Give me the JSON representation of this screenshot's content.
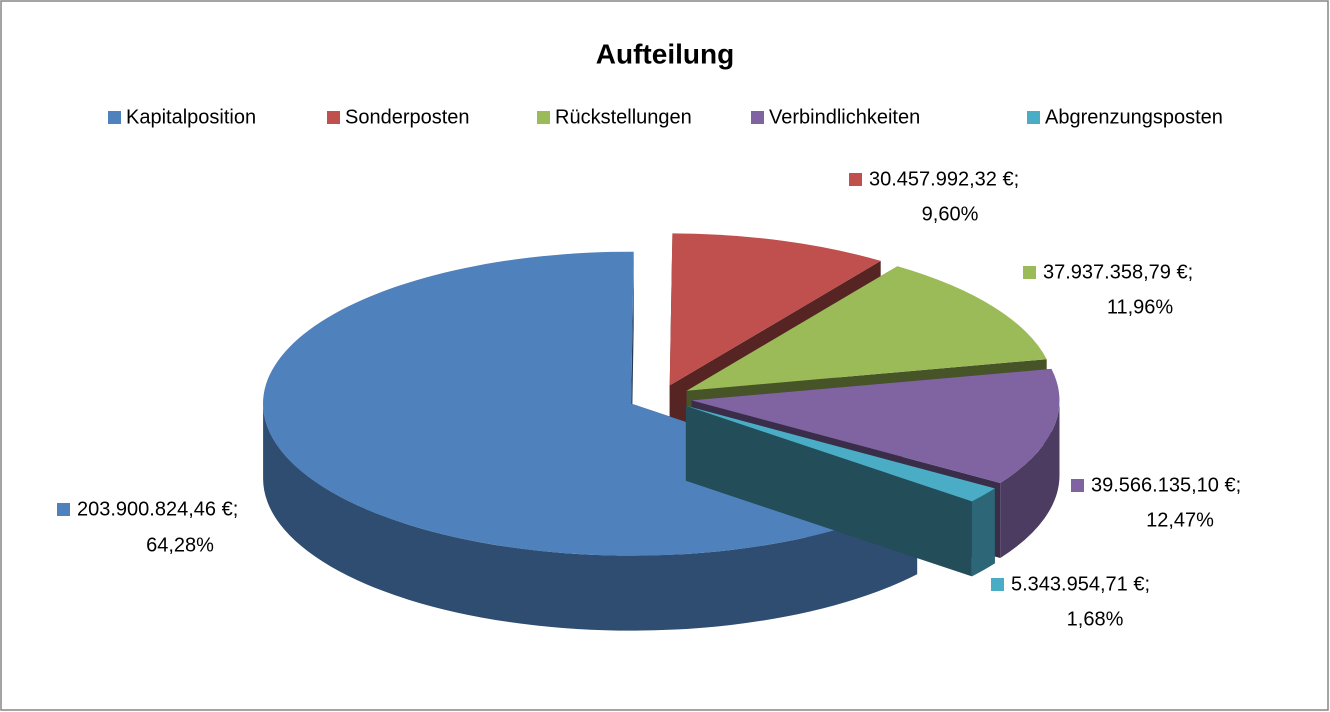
{
  "chart_data": {
    "type": "pie3d",
    "title": "Aufteilung",
    "categories": [
      "Kapitalposition",
      "Sonderposten",
      "Rückstellungen",
      "Verbindlichkeiten",
      "Abgrenzungsposten"
    ],
    "values": [
      203900824.46,
      30457992.32,
      37937358.79,
      39566135.1,
      5343954.71
    ],
    "value_labels": [
      "203.900.824,46 €;",
      "30.457.992,32 €;",
      "37.937.358,79 €;",
      "39.566.135,10 €;",
      "5.343.954,71 €;"
    ],
    "percents": [
      64.28,
      9.6,
      11.96,
      12.47,
      1.68
    ],
    "percent_labels": [
      "64,28%",
      "9,60%",
      "11,96%",
      "12,47%",
      "1,68%"
    ],
    "colors": [
      "#4f81bd",
      "#c0504d",
      "#9bbb59",
      "#8064a2",
      "#4bacc6"
    ],
    "legend": "top"
  }
}
